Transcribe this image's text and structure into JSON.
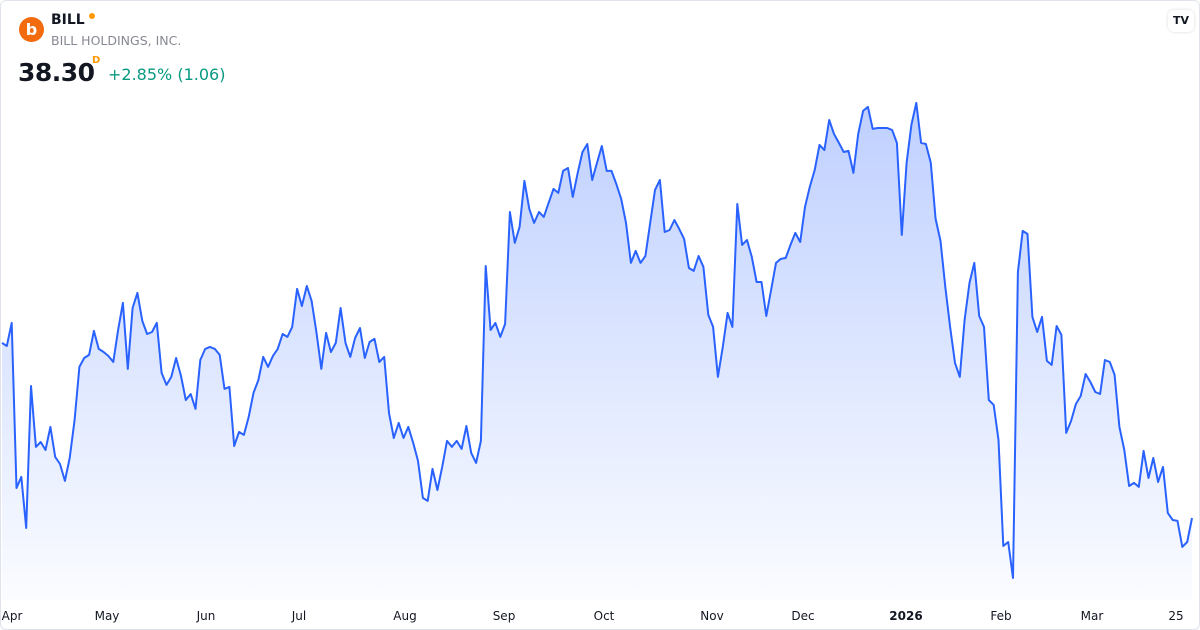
{
  "header": {
    "logo_letter": "b",
    "symbol": "BILL",
    "company": "BILL HOLDINGS, INC.",
    "price": "38.30",
    "interval_flag": "D",
    "change": "+2.85% (1.06)",
    "watermark": "TV"
  },
  "colors": {
    "line": "#2962ff",
    "change_positive": "#089981",
    "logo": "#f26b0f",
    "status_dot": "#ff9800"
  },
  "chart_data": {
    "type": "area",
    "title": "",
    "xlabel": "",
    "ylabel": "",
    "ylim": [
      34.61,
      61.61
    ],
    "grid": false,
    "x_ticks": [
      {
        "label": "Apr",
        "bold": false
      },
      {
        "label": "May",
        "bold": false
      },
      {
        "label": "Jun",
        "bold": false
      },
      {
        "label": "Jul",
        "bold": false
      },
      {
        "label": "Aug",
        "bold": false
      },
      {
        "label": "Sep",
        "bold": false
      },
      {
        "label": "Oct",
        "bold": false
      },
      {
        "label": "Nov",
        "bold": false
      },
      {
        "label": "Dec",
        "bold": false
      },
      {
        "label": "2026",
        "bold": true
      },
      {
        "label": "Feb",
        "bold": false
      },
      {
        "label": "Mar",
        "bold": false
      },
      {
        "label": "25",
        "bold": false
      }
    ],
    "values": [
      46.18,
      46.04,
      47.08,
      39.65,
      40.15,
      37.85,
      44.24,
      41.5,
      41.72,
      41.36,
      42.4,
      41.05,
      40.73,
      39.97,
      41.0,
      42.71,
      45.1,
      45.5,
      45.64,
      46.72,
      45.91,
      45.77,
      45.59,
      45.32,
      46.76,
      47.98,
      45.01,
      47.75,
      48.43,
      47.17,
      46.58,
      46.67,
      47.08,
      44.83,
      44.29,
      44.65,
      45.5,
      44.69,
      43.61,
      43.88,
      43.21,
      45.41,
      45.91,
      46.0,
      45.91,
      45.64,
      44.11,
      44.2,
      41.54,
      42.17,
      42.04,
      42.85,
      43.93,
      44.51,
      45.55,
      45.1,
      45.59,
      45.91,
      46.58,
      46.45,
      46.9,
      48.61,
      47.84,
      48.74,
      48.07,
      46.67,
      45.01,
      46.63,
      45.77,
      46.18,
      47.75,
      46.18,
      45.55,
      46.4,
      46.85,
      45.5,
      46.22,
      46.36,
      45.32,
      45.55,
      43.03,
      41.9,
      42.58,
      41.9,
      42.4,
      41.68,
      40.87,
      39.2,
      39.07,
      40.51,
      39.56,
      40.6,
      41.77,
      41.5,
      41.77,
      41.41,
      42.44,
      41.23,
      40.78,
      41.77,
      49.64,
      46.76,
      47.08,
      46.45,
      47.03,
      52.07,
      50.68,
      51.4,
      53.47,
      52.21,
      51.58,
      52.07,
      51.85,
      52.48,
      53.11,
      52.93,
      53.92,
      54.05,
      52.75,
      53.83,
      54.77,
      55.13,
      53.51,
      54.28,
      55.04,
      53.92,
      53.92,
      53.33,
      52.66,
      51.58,
      49.78,
      50.32,
      49.78,
      50.09,
      51.58,
      53.06,
      53.51,
      51.17,
      51.26,
      51.71,
      51.31,
      50.86,
      49.55,
      49.42,
      50.09,
      49.6,
      47.44,
      46.9,
      44.65,
      46.0,
      47.53,
      46.9,
      52.43,
      50.59,
      50.81,
      50.05,
      48.92,
      48.92,
      47.39,
      48.56,
      49.78,
      49.96,
      50.0,
      50.59,
      51.13,
      50.72,
      52.3,
      53.2,
      53.96,
      55.09,
      54.86,
      56.21,
      55.58,
      55.18,
      54.77,
      54.82,
      53.83,
      55.58,
      56.62,
      56.8,
      55.81,
      55.85,
      55.85,
      55.85,
      55.76,
      55.18,
      51.04,
      54.28,
      55.99,
      56.98,
      55.18,
      55.13,
      54.28,
      51.76,
      50.77,
      48.7,
      46.9,
      45.28,
      44.65,
      47.21,
      48.88,
      49.78,
      47.39,
      46.9,
      43.61,
      43.39,
      41.81,
      37.04,
      37.22,
      35.6,
      49.37,
      51.22,
      51.08,
      47.35,
      46.67,
      47.35,
      45.37,
      45.19,
      46.94,
      46.54,
      42.13,
      42.67,
      43.43,
      43.79,
      44.78,
      44.42,
      43.97,
      43.88,
      45.41,
      45.32,
      44.74,
      42.4,
      41.36,
      39.74,
      39.88,
      39.7,
      41.32,
      40.1,
      41.0,
      39.92,
      40.6,
      38.53,
      38.21,
      38.17,
      37.0,
      37.22,
      38.3
    ]
  }
}
